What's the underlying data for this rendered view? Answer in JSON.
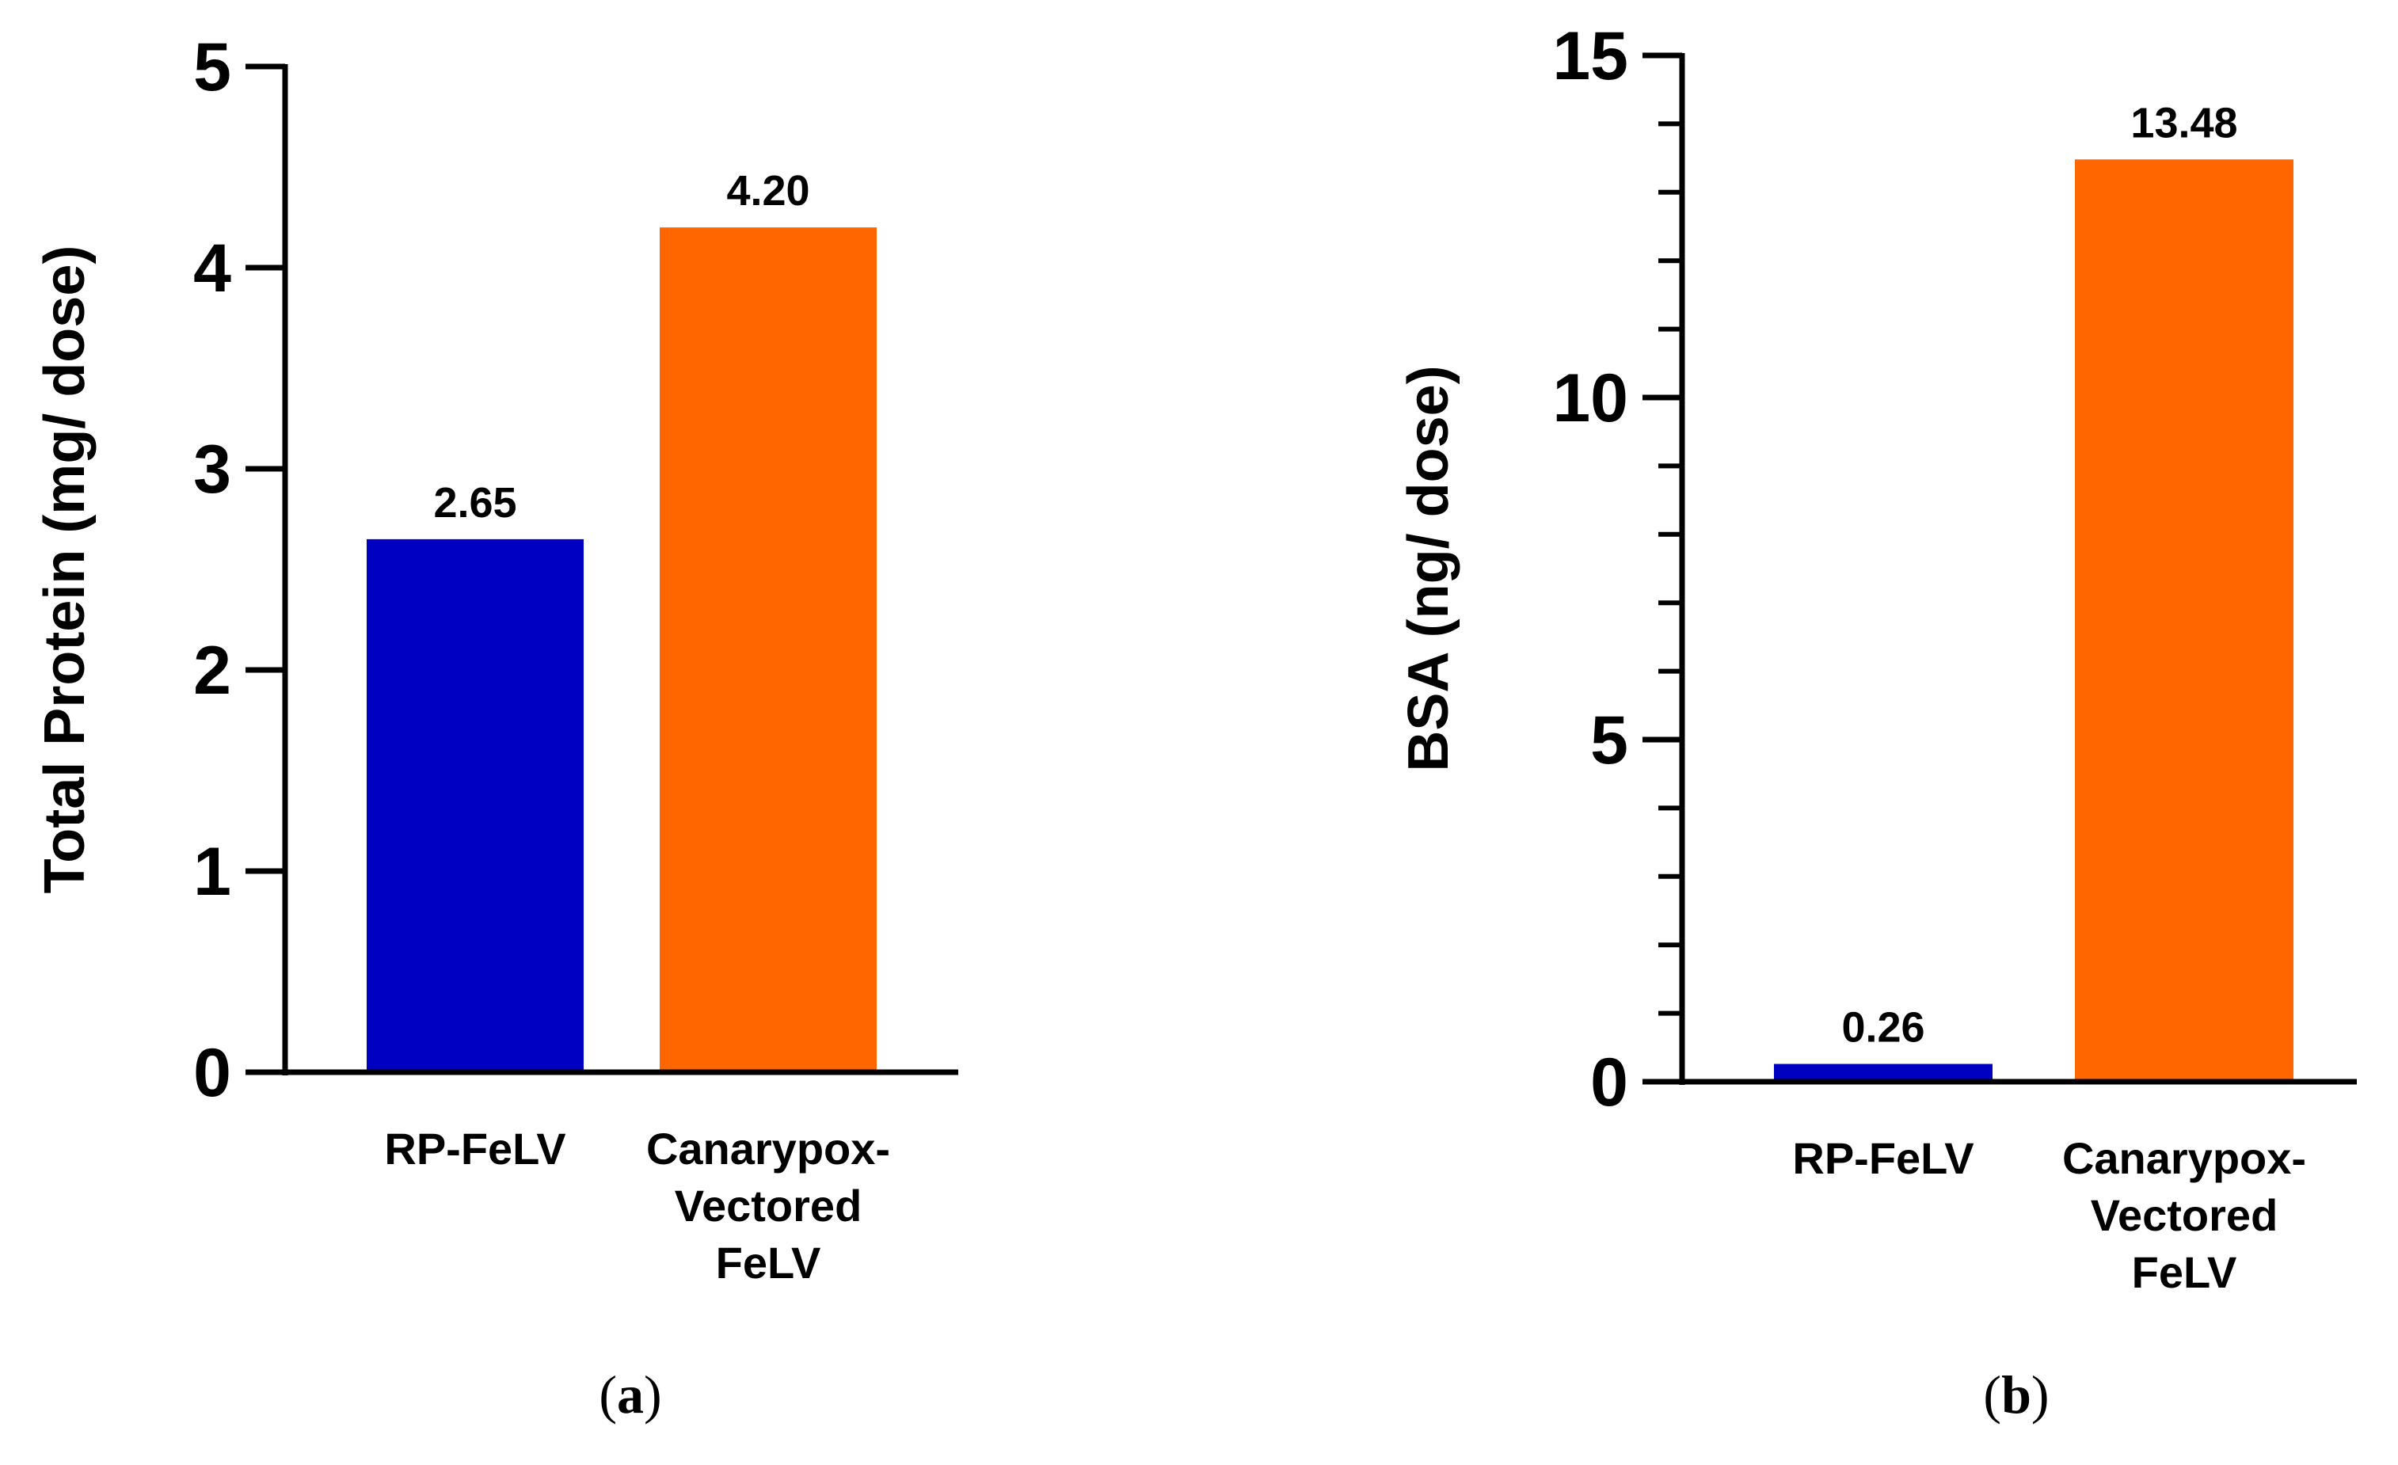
{
  "chart_data": [
    {
      "type": "bar",
      "panel_label": "a",
      "categories": [
        "RP-FeLV",
        "Canarypox-Vectored FeLV"
      ],
      "category_lines": [
        [
          "RP-FeLV"
        ],
        [
          "Canarypox-",
          "Vectored",
          "FeLV"
        ]
      ],
      "values": [
        2.65,
        4.2
      ],
      "value_labels": [
        "2.65",
        "4.20"
      ],
      "colors": [
        "#0000C2",
        "#FF6600"
      ],
      "ylabel": "Total Protein (mg/ dose)",
      "ylim": [
        0,
        5
      ],
      "major_ticks": [
        0,
        1,
        2,
        3,
        4,
        5
      ],
      "major_tick_labels": [
        "0",
        "1",
        "2",
        "3",
        "4",
        "5"
      ],
      "minor_ticks": [],
      "grid": false
    },
    {
      "type": "bar",
      "panel_label": "b",
      "categories": [
        "RP-FeLV",
        "Canarypox-Vectored FeLV"
      ],
      "category_lines": [
        [
          "RP-FeLV"
        ],
        [
          "Canarypox-",
          "Vectored",
          "FeLV"
        ]
      ],
      "values": [
        0.26,
        13.48
      ],
      "value_labels": [
        "0.26",
        "13.48"
      ],
      "colors": [
        "#0000C2",
        "#FF6600"
      ],
      "ylabel": "BSA (ng/ dose)",
      "ylim": [
        0,
        15
      ],
      "major_ticks": [
        0,
        5,
        10,
        15
      ],
      "major_tick_labels": [
        "0",
        "5",
        "10",
        "15"
      ],
      "minor_ticks": [
        1,
        2,
        3,
        4,
        6,
        7,
        8,
        9,
        11,
        12,
        13,
        14
      ],
      "grid": false
    }
  ]
}
